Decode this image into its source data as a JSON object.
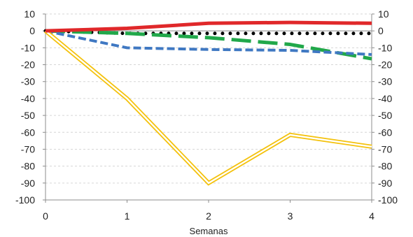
{
  "chart_data": {
    "type": "line",
    "title": "",
    "xlabel": "Semanas",
    "ylabel": "",
    "x": [
      0,
      1,
      2,
      3,
      4
    ],
    "xlim": [
      0,
      4
    ],
    "ylim": [
      -100,
      10
    ],
    "yticks": [
      10,
      0,
      -10,
      -20,
      -30,
      -40,
      -50,
      -60,
      -70,
      -80,
      -90,
      -100
    ],
    "xticks": [
      0,
      1,
      2,
      3,
      4
    ],
    "secondary_y_axis": true,
    "grid": "horizontal, dashed",
    "legend": "none",
    "series": [
      {
        "style": "solid",
        "color": "#e0282a",
        "values": [
          0,
          1.5,
          4.5,
          5,
          4.5
        ]
      },
      {
        "style": "dotted",
        "color": "#000000",
        "values": [
          0,
          -1.5,
          -1.5,
          -1.5,
          -1.5
        ]
      },
      {
        "style": "long-dash",
        "color": "#21a84a",
        "values": [
          0,
          -1.5,
          -4,
          -8,
          -16.5
        ]
      },
      {
        "style": "dashed",
        "color": "#3f78c2",
        "values": [
          0,
          -10,
          -11,
          -11.5,
          -14
        ]
      },
      {
        "style": "double",
        "color": "#f4c20d",
        "values": [
          0,
          -40,
          -90,
          -61.5,
          -68.5
        ]
      }
    ]
  }
}
